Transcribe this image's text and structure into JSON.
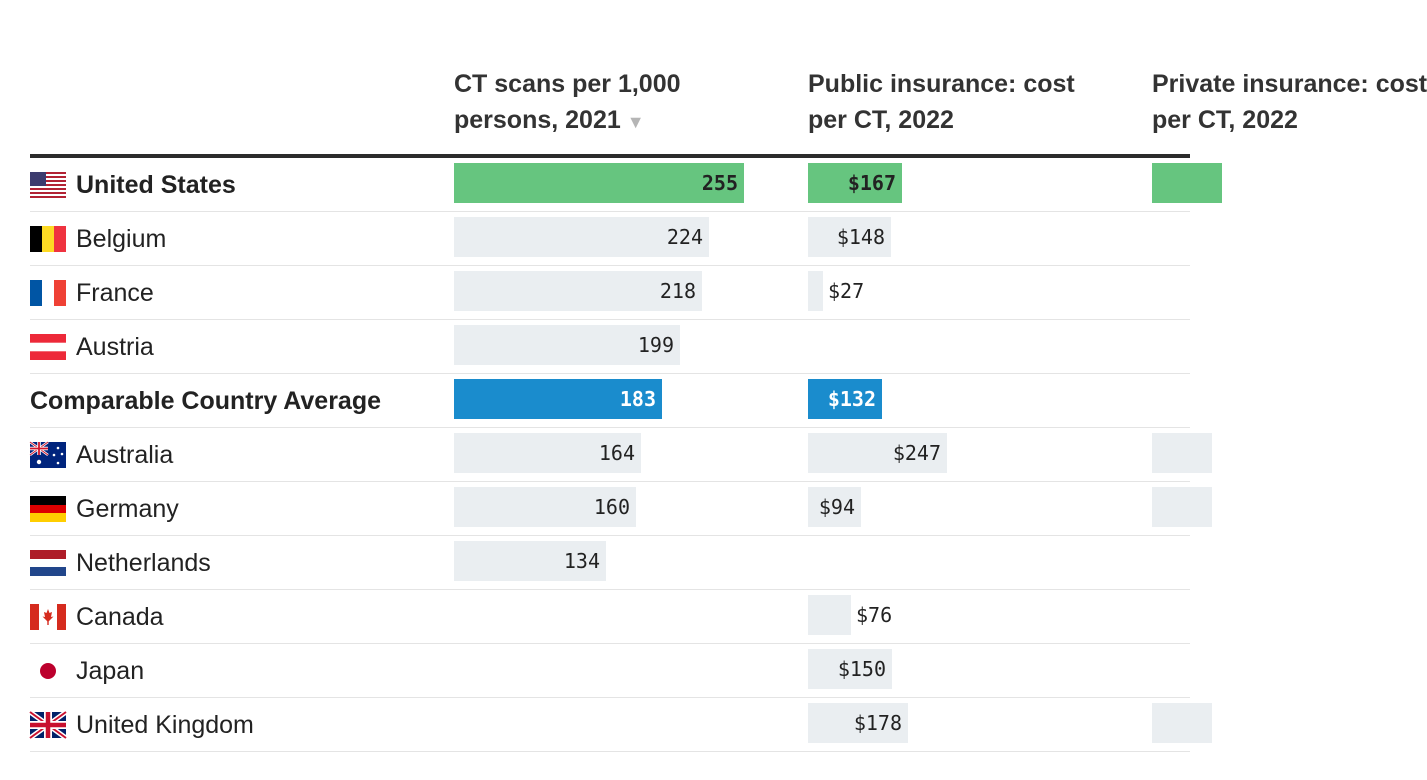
{
  "chart_data": {
    "type": "table",
    "columns": [
      {
        "title": "CT scans per 1,000 persons, 2021",
        "sort_icon": "▼"
      },
      {
        "title": "Public insurance: cost per CT, 2022"
      },
      {
        "title": "Private insurance: cost per CT, 2022"
      }
    ],
    "rows": [
      {
        "name": "United States",
        "flag": "us",
        "style": "us",
        "ct_scans": 255,
        "ct_label": "255",
        "public_cost": 167,
        "public_label": "$167",
        "private_cost": 70
      },
      {
        "name": "Belgium",
        "flag": "be",
        "style": "normal",
        "ct_scans": 224,
        "ct_label": "224",
        "public_cost": 148,
        "public_label": "$148",
        "private_cost": null
      },
      {
        "name": "France",
        "flag": "fr",
        "style": "normal",
        "ct_scans": 218,
        "ct_label": "218",
        "public_cost": 27,
        "public_label": "$27",
        "private_cost": null
      },
      {
        "name": "Austria",
        "flag": "at",
        "style": "normal",
        "ct_scans": 199,
        "ct_label": "199",
        "public_cost": null,
        "public_label": "",
        "private_cost": null
      },
      {
        "name": "Comparable Country Average",
        "flag": "",
        "style": "avg",
        "ct_scans": 183,
        "ct_label": "183",
        "public_cost": 132,
        "public_label": "$132",
        "private_cost": null
      },
      {
        "name": "Australia",
        "flag": "au",
        "style": "normal",
        "ct_scans": 164,
        "ct_label": "164",
        "public_cost": 247,
        "public_label": "$247",
        "private_cost": 60
      },
      {
        "name": "Germany",
        "flag": "de",
        "style": "normal",
        "ct_scans": 160,
        "ct_label": "160",
        "public_cost": 94,
        "public_label": "$94",
        "private_cost": 60
      },
      {
        "name": "Netherlands",
        "flag": "nl",
        "style": "normal",
        "ct_scans": 134,
        "ct_label": "134",
        "public_cost": null,
        "public_label": "",
        "private_cost": null
      },
      {
        "name": "Canada",
        "flag": "ca",
        "style": "normal",
        "ct_scans": null,
        "ct_label": "",
        "public_cost": 76,
        "public_label": "$76",
        "private_cost": null
      },
      {
        "name": "Japan",
        "flag": "jp",
        "style": "normal",
        "ct_scans": null,
        "ct_label": "",
        "public_cost": 150,
        "public_label": "$150",
        "private_cost": null
      },
      {
        "name": "United Kingdom",
        "flag": "gb",
        "style": "normal",
        "ct_scans": null,
        "ct_label": "",
        "public_cost": 178,
        "public_label": "$178",
        "private_cost": 60
      }
    ]
  }
}
